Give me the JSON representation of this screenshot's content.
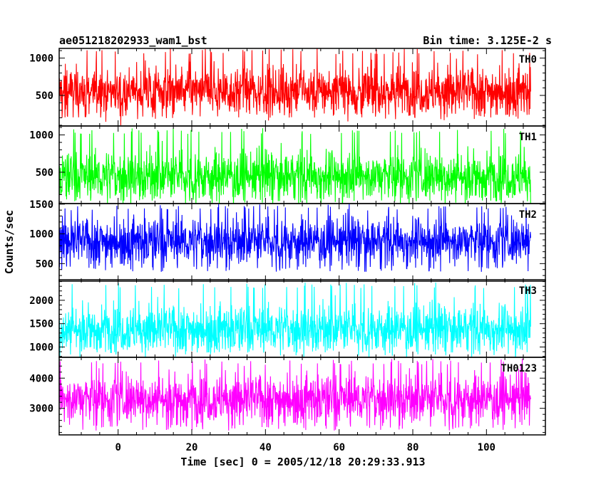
{
  "chart_data": {
    "type": "line",
    "title": "ae051218202933_wam1_bst",
    "subtitle": "Bin time: 3.125E-2 s",
    "xlabel": "Time [sec] 0 = 2005/12/18 20:29:33.913",
    "ylabel": "Counts/sec",
    "xlim": [
      -16,
      116
    ],
    "xticks": [
      0,
      20,
      40,
      60,
      80,
      100
    ],
    "x_range": [
      -16,
      112
    ],
    "bin_time": 0.03125,
    "grid": false,
    "panels": [
      {
        "name": "TH0",
        "color": "#ff0000",
        "ylim": [
          90,
          1130
        ],
        "yticks": [
          500,
          1000
        ],
        "mean": 560,
        "low": 180,
        "high": 1130
      },
      {
        "name": "TH1",
        "color": "#00ff00",
        "ylim": [
          80,
          1120
        ],
        "yticks": [
          500,
          1000
        ],
        "mean": 450,
        "low": 110,
        "high": 1090
      },
      {
        "name": "TH2",
        "color": "#0000ff",
        "ylim": [
          205,
          1510
        ],
        "yticks": [
          500,
          1000,
          1500
        ],
        "mean": 880,
        "low": 360,
        "high": 1500
      },
      {
        "name": "TH3",
        "color": "#00ffff",
        "ylim": [
          780,
          2440
        ],
        "yticks": [
          1000,
          1500,
          2000
        ],
        "mean": 1390,
        "low": 880,
        "high": 2380
      },
      {
        "name": "TH0123",
        "color": "#ff00ff",
        "ylim": [
          2120,
          4690
        ],
        "yticks": [
          3000,
          4000
        ],
        "mean": 3320,
        "low": 2260,
        "high": 4640
      }
    ]
  }
}
